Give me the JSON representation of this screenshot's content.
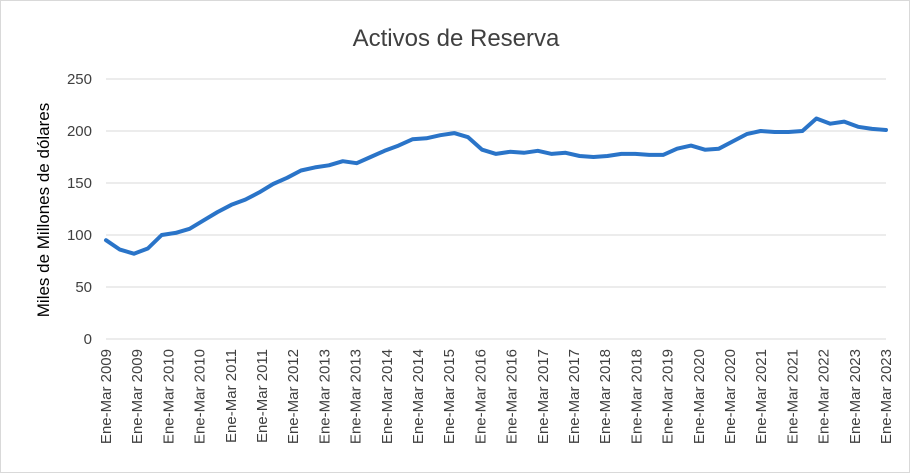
{
  "chart_data": {
    "type": "line",
    "title": "Activos de Reserva",
    "xlabel": "",
    "ylabel": "Miles de Millones de dólares",
    "ylim": [
      0,
      250
    ],
    "yticks": [
      0,
      50,
      100,
      150,
      200,
      250
    ],
    "grid": true,
    "legend": "none",
    "series_color": "#2a74c8",
    "x_tick_labels": [
      "Ene-Mar 2009",
      "Ene-Mar 2009",
      "Ene-Mar 2010",
      "Ene-Mar 2010",
      "Ene-Mar 2011",
      "Ene-Mar 2011",
      "Ene-Mar 2012",
      "Ene-Mar 2013",
      "Ene-Mar 2013",
      "Ene-Mar 2014",
      "Ene-Mar 2014",
      "Ene-Mar 2015",
      "Ene-Mar 2016",
      "Ene-Mar 2016",
      "Ene-Mar 2017",
      "Ene-Mar 2017",
      "Ene-Mar 2018",
      "Ene-Mar 2018",
      "Ene-Mar 2019",
      "Ene-Mar 2020",
      "Ene-Mar 2020",
      "Ene-Mar 2021",
      "Ene-Mar 2021",
      "Ene-Mar 2022",
      "Ene-Mar 2023",
      "Ene-Mar 2023"
    ],
    "series": [
      {
        "values": [
          95,
          86,
          82,
          87,
          100,
          102,
          106,
          114,
          122,
          129,
          134,
          141,
          149,
          155,
          162,
          165,
          167,
          171,
          169,
          175,
          181,
          186,
          192,
          193,
          196,
          198,
          194,
          182,
          178,
          180,
          179,
          181,
          178,
          179,
          176,
          175,
          176,
          178,
          178,
          177,
          177,
          183,
          186,
          182,
          183,
          190,
          197,
          200,
          199,
          199,
          200,
          212,
          207,
          209,
          204,
          202,
          201
        ]
      }
    ]
  }
}
